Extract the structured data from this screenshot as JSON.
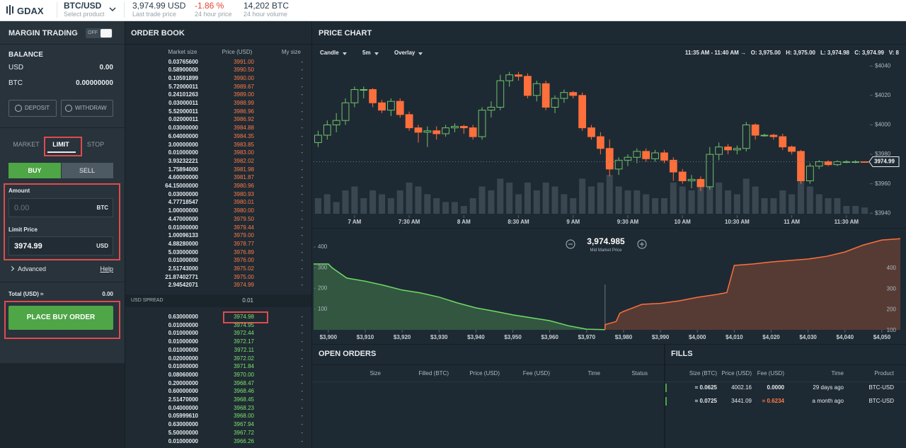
{
  "header": {
    "logo": "GDAX",
    "product": "BTC/USD",
    "product_hint": "Select product",
    "last_price": "3,974.99 USD",
    "last_price_label": "Last trade price",
    "change": "-1.86 %",
    "change_label": "24 hour price",
    "volume": "14,202 BTC",
    "volume_label": "24 hour volume"
  },
  "sidebar": {
    "margin_title": "MARGIN TRADING",
    "toggle": "OFF",
    "balance_title": "BALANCE",
    "balances": [
      [
        "USD",
        "0.00"
      ],
      [
        "BTC",
        "0.00000000"
      ]
    ],
    "deposit": "DEPOSIT",
    "withdraw": "WITHDRAW",
    "tabs": [
      "MARKET",
      "LIMIT",
      "STOP"
    ],
    "sides": [
      "BUY",
      "SELL"
    ],
    "amount_label": "Amount",
    "amount_placeholder": "0.00",
    "amount_unit": "BTC",
    "limit_label": "Limit Price",
    "limit_value": "3974.99",
    "limit_unit": "USD",
    "advanced": "Advanced",
    "help": "Help",
    "total_label": "Total (USD) ≈",
    "total_value": "0.00",
    "submit": "PLACE BUY ORDER"
  },
  "order_book": {
    "title": "ORDER BOOK",
    "columns": [
      "Market size",
      "Price (USD)",
      "My size"
    ],
    "asks": [
      [
        "0.03765600",
        "3991.00",
        "-"
      ],
      [
        "0.58900000",
        "3990.50",
        "-"
      ],
      [
        "0.10591899",
        "3990.00",
        "-"
      ],
      [
        "5.72000011",
        "3989.67",
        "-"
      ],
      [
        "0.24101263",
        "3989.00",
        "-"
      ],
      [
        "0.03000011",
        "3988.99",
        "-"
      ],
      [
        "5.52000011",
        "3986.96",
        "-"
      ],
      [
        "0.02000011",
        "3986.92",
        "-"
      ],
      [
        "0.03000000",
        "3984.88",
        "-"
      ],
      [
        "6.04000000",
        "3984.35",
        "-"
      ],
      [
        "3.00000000",
        "3983.85",
        "-"
      ],
      [
        "0.01000000",
        "3983.00",
        "-"
      ],
      [
        "3.93232221",
        "3982.02",
        "-"
      ],
      [
        "1.75894000",
        "3981.98",
        "-"
      ],
      [
        "4.60000000",
        "3981.87",
        "-"
      ],
      [
        "64.15000000",
        "3980.96",
        "-"
      ],
      [
        "0.03000000",
        "3980.93",
        "-"
      ],
      [
        "4.77718547",
        "3980.01",
        "-"
      ],
      [
        "1.00000000",
        "3980.00",
        "-"
      ],
      [
        "4.47000000",
        "3979.50",
        "-"
      ],
      [
        "0.01000000",
        "3979.44",
        "-"
      ],
      [
        "1.00096133",
        "3979.00",
        "-"
      ],
      [
        "4.88280000",
        "3978.77",
        "-"
      ],
      [
        "5.03000000",
        "3976.89",
        "-"
      ],
      [
        "0.01000000",
        "3976.00",
        "-"
      ],
      [
        "2.51743000",
        "3975.02",
        "-"
      ],
      [
        "21.87402771",
        "3975.00",
        "-"
      ],
      [
        "2.94542071",
        "3974.99",
        "-"
      ]
    ],
    "spread_label": "USD SPREAD",
    "spread": "0.01",
    "bids": [
      [
        "0.63000000",
        "3974.98",
        "-"
      ],
      [
        "0.01000000",
        "3974.95",
        "-"
      ],
      [
        "0.01000000",
        "3972.44",
        "-"
      ],
      [
        "0.01000000",
        "3972.17",
        "-"
      ],
      [
        "0.01000000",
        "3972.11",
        "-"
      ],
      [
        "0.02000000",
        "3972.02",
        "-"
      ],
      [
        "0.01000000",
        "3971.84",
        "-"
      ],
      [
        "0.08060000",
        "3970.00",
        "-"
      ],
      [
        "0.20000000",
        "3968.47",
        "-"
      ],
      [
        "0.60000000",
        "3968.46",
        "-"
      ],
      [
        "2.51470000",
        "3968.45",
        "-"
      ],
      [
        "0.04000000",
        "3968.23",
        "-"
      ],
      [
        "0.05999610",
        "3968.00",
        "-"
      ],
      [
        "0.63000000",
        "3967.94",
        "-"
      ],
      [
        "5.50000000",
        "3967.72",
        "-"
      ],
      [
        "0.01000000",
        "3966.26",
        "-"
      ]
    ]
  },
  "chart_data": [
    {
      "type": "candlestick",
      "title": "PRICE CHART",
      "toolbar": [
        "Candle",
        "5m",
        "Overlay"
      ],
      "info": [
        "11:35 AM - 11:40 AM →",
        "O: 3,975.00",
        "H: 3,975.00",
        "L: 3,974.98",
        "C: 3,974.99",
        "V: 8"
      ],
      "up_color": "#70c16c",
      "down_color": "#ff6f3c",
      "open": [
        3988,
        3993,
        4000,
        4003,
        4015,
        4024,
        4024,
        4015,
        4010,
        4016,
        4007,
        3998,
        3995,
        3996,
        3994,
        3998,
        3999,
        3998,
        3992,
        4010,
        4012,
        4030,
        4034,
        4033,
        4020,
        4028,
        4012,
        4018,
        4022,
        4020,
        3998,
        3992,
        3984,
        3970,
        3976,
        3978,
        3982,
        3977,
        3981,
        3976,
        3968,
        3962,
        3963,
        3958,
        3980,
        3985,
        3983,
        3984,
        4000,
        3993,
        3993,
        3992,
        3985,
        3982,
        3962,
        3972,
        3975,
        3973,
        3975,
        3975,
        3975
      ],
      "high": [
        3996,
        4003,
        4008,
        4018,
        4026,
        4026,
        4025,
        4017,
        4018,
        4018,
        4009,
        4000,
        3999,
        3999,
        4000,
        4001,
        4000,
        4000,
        4012,
        4016,
        4034,
        4036,
        4036,
        4035,
        4030,
        4030,
        4020,
        4024,
        4023,
        4022,
        4000,
        3995,
        3990,
        3978,
        3980,
        3984,
        3984,
        3983,
        3983,
        3978,
        3970,
        3966,
        3965,
        3985,
        3988,
        3987,
        3986,
        4002,
        4001,
        3994,
        3994,
        3994,
        3986,
        3983,
        3974,
        3976,
        3976,
        3976,
        3976,
        3976,
        3975
      ],
      "low": [
        3985,
        3990,
        3995,
        4000,
        4012,
        4018,
        4012,
        4008,
        4006,
        4005,
        3996,
        3988,
        3985,
        3990,
        3992,
        3995,
        3994,
        3990,
        3990,
        4005,
        4010,
        4026,
        4030,
        4018,
        4016,
        4010,
        4008,
        4015,
        4018,
        3996,
        3990,
        3980,
        3965,
        3966,
        3972,
        3974,
        3975,
        3975,
        3974,
        3962,
        3960,
        3957,
        3955,
        3956,
        3976,
        3980,
        3980,
        3982,
        3990,
        3992,
        3990,
        3983,
        3980,
        3960,
        3960,
        3970,
        3972,
        3972,
        3974,
        3974,
        3974.98
      ],
      "close": [
        3993,
        4000,
        4003,
        4015,
        4024,
        4024,
        4015,
        4010,
        4016,
        4007,
        3998,
        3995,
        3996,
        3994,
        3998,
        3999,
        3998,
        3992,
        4010,
        4012,
        4030,
        4034,
        4033,
        4020,
        4028,
        4012,
        4018,
        4022,
        4020,
        3998,
        3992,
        3984,
        3970,
        3976,
        3978,
        3982,
        3977,
        3981,
        3976,
        3968,
        3962,
        3963,
        3958,
        3980,
        3985,
        3983,
        3984,
        4000,
        3993,
        3993,
        3992,
        3985,
        3982,
        3962,
        3972,
        3975,
        3973,
        3975,
        3975,
        3975,
        3974.99
      ],
      "volume": [
        20,
        25,
        15,
        30,
        35,
        20,
        30,
        25,
        20,
        30,
        40,
        35,
        25,
        20,
        15,
        15,
        10,
        20,
        35,
        30,
        45,
        40,
        25,
        40,
        30,
        40,
        35,
        25,
        20,
        45,
        35,
        40,
        50,
        35,
        30,
        30,
        25,
        20,
        20,
        40,
        35,
        30,
        35,
        50,
        40,
        30,
        25,
        45,
        35,
        20,
        20,
        30,
        25,
        45,
        35,
        25,
        20,
        20,
        10,
        10,
        8
      ],
      "vlim": [
        0,
        100
      ],
      "last_label": "3974.99",
      "xlim": [
        -0.5,
        60.5
      ],
      "xticks": [
        {
          "value": 4,
          "label": "7 AM"
        },
        {
          "value": 10,
          "label": "7:30 AM"
        },
        {
          "value": 16,
          "label": "8 AM"
        },
        {
          "value": 22,
          "label": "8:30 AM"
        },
        {
          "value": 28,
          "label": "9 AM"
        },
        {
          "value": 34,
          "label": "9:30 AM"
        },
        {
          "value": 40,
          "label": "10 AM"
        },
        {
          "value": 46,
          "label": "10:30 AM"
        },
        {
          "value": 52,
          "label": "11 AM"
        },
        {
          "value": 58,
          "label": "11:30 AM"
        }
      ],
      "ylim": [
        3931,
        4043
      ],
      "yticks": [
        {
          "value": 3940,
          "label": "$3940"
        },
        {
          "value": 3960,
          "label": "$3960"
        },
        {
          "value": 3980,
          "label": "$3980"
        },
        {
          "value": 4000,
          "label": "$4000"
        },
        {
          "value": 4020,
          "label": "$4020"
        },
        {
          "value": 4040,
          "label": "$4040"
        }
      ]
    },
    {
      "type": "depth",
      "mid": {
        "value": 3974.985,
        "label": "3,974.985"
      },
      "mid_label": "Mid Market Price",
      "bids": {
        "color": "#6fdc66",
        "x": [
          3896,
          3900,
          3901,
          3905,
          3910,
          3915,
          3920,
          3925,
          3930,
          3935,
          3940,
          3945,
          3950,
          3955,
          3960,
          3965,
          3970,
          3974.98
        ],
        "values": [
          318,
          318,
          300,
          250,
          235,
          215,
          192,
          178,
          158,
          130,
          106,
          90,
          72,
          58,
          44,
          20,
          3,
          0.63
        ]
      },
      "asks": {
        "color": "#ff6f3c",
        "x": [
          3974.99,
          3975,
          3978,
          3979,
          3980,
          3985,
          3990,
          3995,
          4000,
          4005,
          4008,
          4010,
          4015,
          4020,
          4025,
          4030,
          4035,
          4040,
          4045,
          4050,
          4055
        ],
        "values": [
          2.9,
          25,
          40,
          80,
          89,
          123,
          128,
          140,
          157,
          170,
          180,
          311,
          318,
          328,
          335,
          342,
          355,
          376,
          410,
          434,
          440
        ]
      },
      "xlim": [
        3896,
        4055
      ],
      "xticks": [
        {
          "value": 3900,
          "label": "$3,900"
        },
        {
          "value": 3910,
          "label": "$3,910"
        },
        {
          "value": 3920,
          "label": "$3,920"
        },
        {
          "value": 3930,
          "label": "$3,930"
        },
        {
          "value": 3940,
          "label": "$3,940"
        },
        {
          "value": 3950,
          "label": "$3,950"
        },
        {
          "value": 3960,
          "label": "$3,960"
        },
        {
          "value": 3970,
          "label": "$3,970"
        },
        {
          "value": 3980,
          "label": "$3,980"
        },
        {
          "value": 3990,
          "label": "$3,990"
        },
        {
          "value": 4000,
          "label": "$4,000"
        },
        {
          "value": 4010,
          "label": "$4,010"
        },
        {
          "value": 4020,
          "label": "$4,020"
        },
        {
          "value": 4030,
          "label": "$4,030"
        },
        {
          "value": 4040,
          "label": "$4,040"
        },
        {
          "value": 4050,
          "label": "$4,050"
        }
      ],
      "ylim": [
        0,
        465
      ],
      "yticks": [
        100,
        200,
        300,
        400
      ]
    }
  ],
  "open_orders": {
    "title": "OPEN ORDERS",
    "columns": [
      "Size",
      "Filled (BTC)",
      "Price (USD)",
      "Fee (USD)",
      "Time",
      "Status"
    ]
  },
  "fills": {
    "title": "FILLS",
    "columns": [
      "Size (BTC)",
      "Price (USD)",
      "Fee (USD)",
      "Time",
      "Product"
    ],
    "rows": [
      [
        "≈ 0.0625",
        "4002.16",
        "0.0000",
        "29 days ago",
        "BTC-USD"
      ],
      [
        "≈ 0.0725",
        "3441.09",
        "≈ 0.6234",
        "a month ago",
        "BTC-USD"
      ]
    ]
  }
}
